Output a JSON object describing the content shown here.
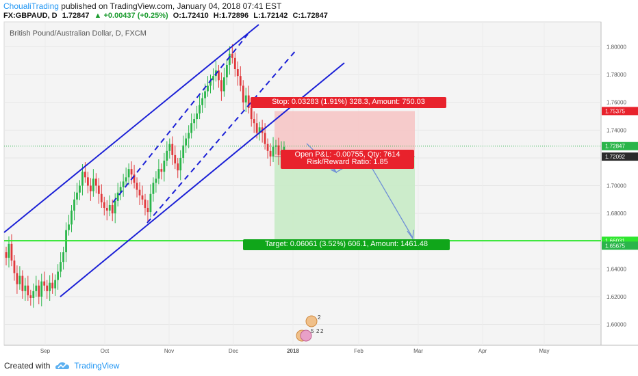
{
  "header": {
    "author": "ChoualiTrading",
    "published": "published on TradingView.com, January 04, 2018 07:41 EST",
    "symbol_line": "FX:GBPAUD, D",
    "last": "1.72847",
    "change": "▲ +0.00437 (+0.25%)",
    "o": "O:1.72410",
    "h": "H:1.72896",
    "l": "L:1.72142",
    "c": "C:1.72847"
  },
  "footer": {
    "created_with": "Created with",
    "brand": "TradingView"
  },
  "colors": {
    "bull": "#2ab54a",
    "bear": "#e0383b",
    "channel": "#1a1fd6",
    "support": "#2ee62e",
    "stop_zone": "#f6c6c6",
    "target_zone": "#c8ebc6",
    "stop_label": "#e8222c",
    "target_label": "#10a61a",
    "arrow": "#6f8fd6"
  },
  "chart_data": {
    "type": "candlestick",
    "title": "British Pound/Australian Dollar, D, FXCM",
    "ylim": [
      1.585,
      1.818
    ],
    "x_ticks": [
      "Sep",
      "Oct",
      "Nov",
      "Dec",
      "2018",
      "Feb",
      "Mar",
      "Apr",
      "May"
    ],
    "y_ticks": [
      "1.80000",
      "1.78000",
      "1.76000",
      "1.74000",
      "1.72000",
      "1.70000",
      "1.68000",
      "1.66000",
      "1.64000",
      "1.62000",
      "1.60000"
    ],
    "price_badges": [
      {
        "value": 1.75375,
        "label": "1.75375",
        "color": "#e8222c"
      },
      {
        "value": 1.72847,
        "label": "1.72847",
        "color": "#2ab54a"
      },
      {
        "value": 1.72092,
        "label": "1.72092",
        "color": "#2b2b2b"
      },
      {
        "value": 1.66031,
        "label": "1.66031",
        "color": "#2ee62e"
      },
      {
        "value": 1.65675,
        "label": "1.65675",
        "color": "#2ab54a"
      }
    ],
    "position": {
      "entry": 1.72092,
      "stop": 1.75375,
      "target": 1.66031,
      "stop_label": "Stop: 0.03283 (1.91%) 328.3, Amount: 750.03",
      "target_label": "Target: 0.06061 (3.52%) 606.1, Amount: 1461.48",
      "open_pl_label": "Open P&L: -0.00755, Qty: 7614",
      "rr_label": "Risk/Reward Ratio: 1.85"
    },
    "support_level": 1.66031,
    "event_badges": [
      "2",
      "5",
      "2",
      "2"
    ],
    "closes": [
      1.648,
      1.658,
      1.646,
      1.637,
      1.629,
      1.635,
      1.624,
      1.628,
      1.621,
      1.619,
      1.624,
      1.628,
      1.62,
      1.631,
      1.628,
      1.624,
      1.63,
      1.626,
      1.632,
      1.638,
      1.645,
      1.652,
      1.668,
      1.672,
      1.682,
      1.69,
      1.695,
      1.7,
      1.71,
      1.706,
      1.7,
      1.696,
      1.705,
      1.7,
      1.694,
      1.688,
      1.684,
      1.682,
      1.686,
      1.68,
      1.689,
      1.695,
      1.699,
      1.703,
      1.706,
      1.712,
      1.708,
      1.702,
      1.697,
      1.693,
      1.69,
      1.684,
      1.681,
      1.694,
      1.702,
      1.705,
      1.712,
      1.71,
      1.718,
      1.725,
      1.73,
      1.722,
      1.716,
      1.711,
      1.72,
      1.729,
      1.734,
      1.738,
      1.745,
      1.748,
      1.752,
      1.758,
      1.763,
      1.768,
      1.772,
      1.776,
      1.779,
      1.783,
      1.776,
      1.768,
      1.778,
      1.787,
      1.795,
      1.792,
      1.784,
      1.779,
      1.772,
      1.76,
      1.765,
      1.756,
      1.748,
      1.745,
      1.738,
      1.742,
      1.738,
      1.73,
      1.725,
      1.721,
      1.728,
      1.729,
      1.722,
      1.725,
      1.728
    ]
  }
}
